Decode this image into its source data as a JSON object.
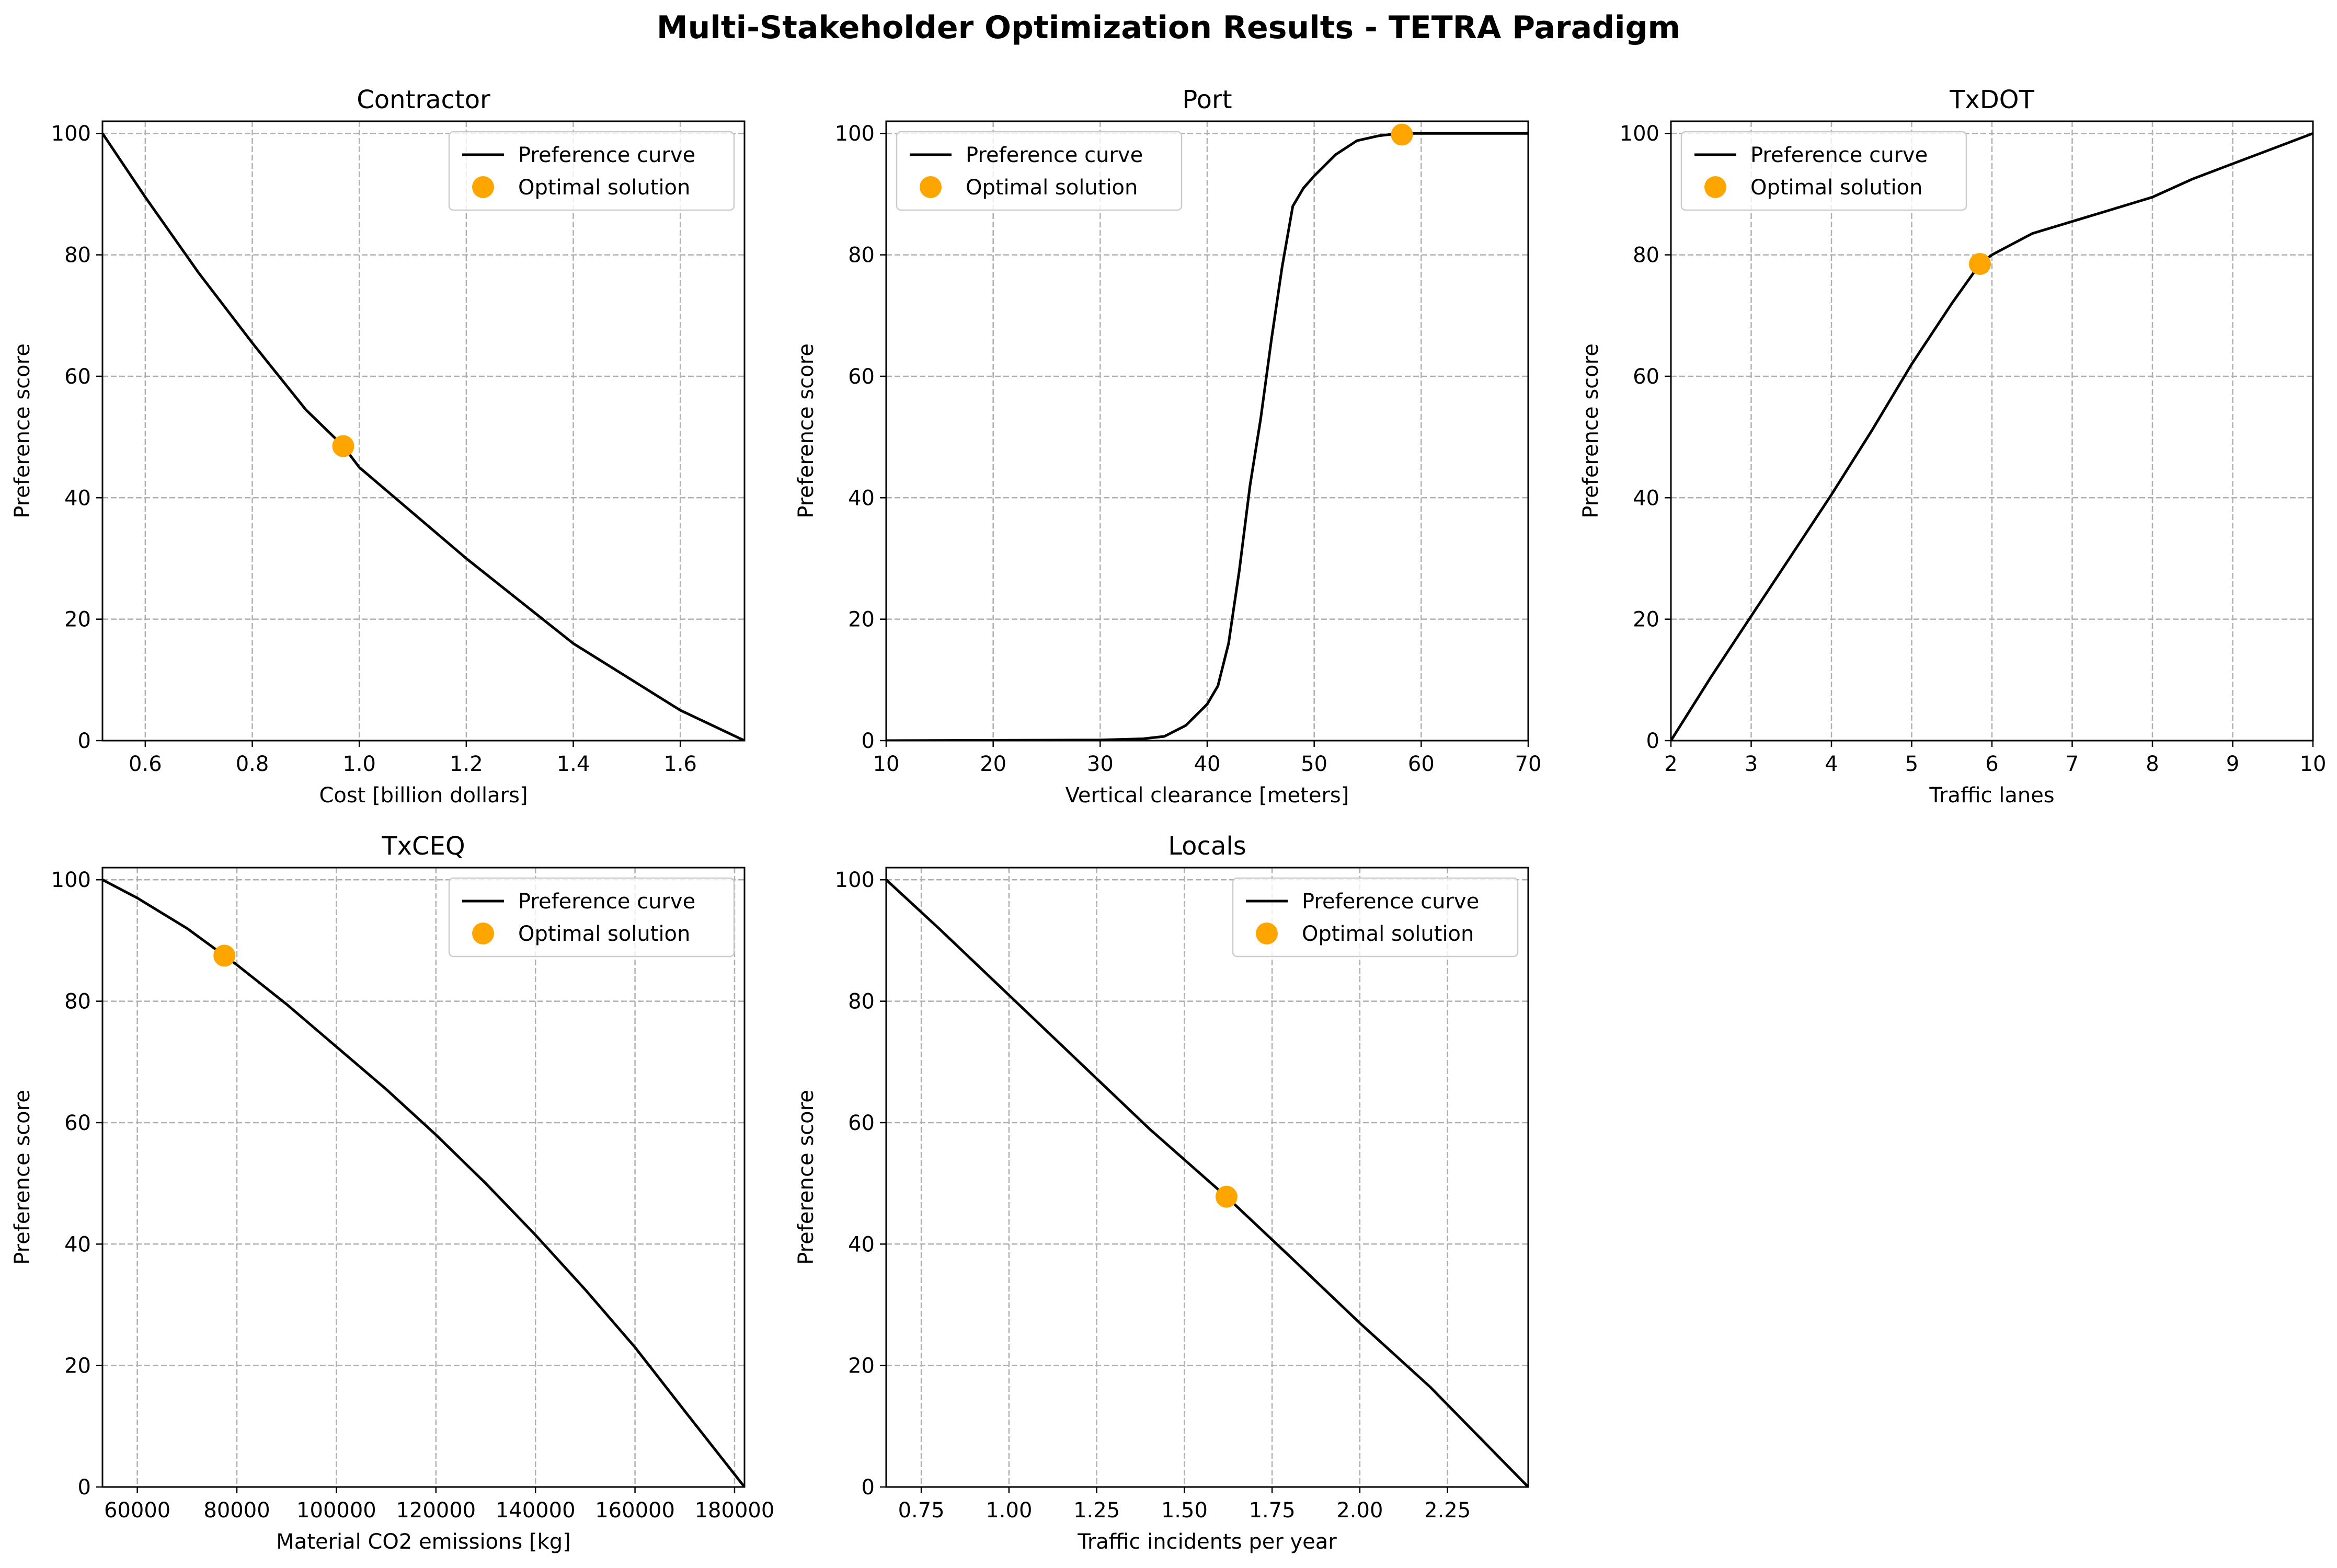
{
  "suptitle": "Multi-Stakeholder Optimization Results - TETRA Paradigm",
  "colors": {
    "curve": "#000000",
    "optimal": "#FFA500",
    "grid": "#b0b0b0"
  },
  "chart_data": [
    {
      "type": "line",
      "title": "Contractor",
      "xlabel": "Cost [billion dollars]",
      "ylabel": "Preference score",
      "xlim": [
        0.52,
        1.72
      ],
      "ylim": [
        0,
        102
      ],
      "xticks": [
        0.6,
        0.8,
        1.0,
        1.2,
        1.4,
        1.6
      ],
      "xtick_labels": [
        "0.6",
        "0.8",
        "1.0",
        "1.2",
        "1.4",
        "1.6"
      ],
      "yticks": [
        0,
        20,
        40,
        60,
        80,
        100
      ],
      "ytick_labels": [
        "0",
        "20",
        "40",
        "60",
        "80",
        "100"
      ],
      "grid": true,
      "legend_position": "upper right",
      "series": [
        {
          "name": "Preference curve",
          "x": [
            0.52,
            0.6,
            0.7,
            0.8,
            0.9,
            0.97,
            1.0,
            1.1,
            1.2,
            1.3,
            1.4,
            1.5,
            1.6,
            1.72
          ],
          "y": [
            100,
            89.5,
            77,
            65.5,
            54.5,
            48.5,
            45,
            37.5,
            30,
            23,
            16,
            10.5,
            5,
            0
          ]
        },
        {
          "name": "Optimal solution",
          "type": "scatter",
          "x": [
            0.97
          ],
          "y": [
            48.5
          ]
        }
      ]
    },
    {
      "type": "line",
      "title": "Port",
      "xlabel": "Vertical clearance [meters]",
      "ylabel": "Preference score",
      "xlim": [
        10,
        70
      ],
      "ylim": [
        0,
        102
      ],
      "xticks": [
        10,
        20,
        30,
        40,
        50,
        60,
        70
      ],
      "xtick_labels": [
        "10",
        "20",
        "30",
        "40",
        "50",
        "60",
        "70"
      ],
      "yticks": [
        0,
        20,
        40,
        60,
        80,
        100
      ],
      "ytick_labels": [
        "0",
        "20",
        "40",
        "60",
        "80",
        "100"
      ],
      "grid": true,
      "legend_position": "upper left",
      "series": [
        {
          "name": "Preference curve",
          "x": [
            10,
            30,
            34,
            36,
            38,
            40,
            41,
            42,
            43,
            44,
            45,
            46,
            47,
            48,
            49,
            50,
            52,
            54,
            56,
            58,
            70
          ],
          "y": [
            0,
            0.1,
            0.3,
            0.7,
            2.5,
            6,
            9,
            16,
            28,
            42,
            53,
            66,
            78,
            88,
            91,
            93,
            96.5,
            98.8,
            99.6,
            100,
            100
          ]
        },
        {
          "name": "Optimal solution",
          "type": "scatter",
          "x": [
            58.2
          ],
          "y": [
            99.8
          ]
        }
      ]
    },
    {
      "type": "line",
      "title": "TxDOT",
      "xlabel": "Traffic lanes",
      "ylabel": "Preference score",
      "xlim": [
        2,
        10
      ],
      "ylim": [
        0,
        102
      ],
      "xticks": [
        2,
        3,
        4,
        5,
        6,
        7,
        8,
        9,
        10
      ],
      "xtick_labels": [
        "2",
        "3",
        "4",
        "5",
        "6",
        "7",
        "8",
        "9",
        "10"
      ],
      "yticks": [
        0,
        20,
        40,
        60,
        80,
        100
      ],
      "ytick_labels": [
        "0",
        "20",
        "40",
        "60",
        "80",
        "100"
      ],
      "grid": true,
      "legend_position": "upper left",
      "series": [
        {
          "name": "Preference curve",
          "x": [
            2,
            2.5,
            3,
            3.5,
            4,
            4.5,
            5,
            5.5,
            5.85,
            6,
            6.5,
            7,
            7.5,
            8,
            8.5,
            9,
            9.5,
            10
          ],
          "y": [
            0,
            10.5,
            20.5,
            30.5,
            40.5,
            51,
            62,
            72,
            78.5,
            80,
            83.5,
            85.5,
            87.5,
            89.5,
            92.5,
            95,
            97.5,
            100
          ]
        },
        {
          "name": "Optimal solution",
          "type": "scatter",
          "x": [
            5.85
          ],
          "y": [
            78.5
          ]
        }
      ]
    },
    {
      "type": "line",
      "title": "TxCEQ",
      "xlabel": "Material CO2 emissions [kg]",
      "ylabel": "Preference score",
      "xlim": [
        53000,
        182000
      ],
      "ylim": [
        0,
        102
      ],
      "xticks": [
        60000,
        80000,
        100000,
        120000,
        140000,
        160000,
        180000
      ],
      "xtick_labels": [
        "60000",
        "80000",
        "100000",
        "120000",
        "140000",
        "160000",
        "180000"
      ],
      "yticks": [
        0,
        20,
        40,
        60,
        80,
        100
      ],
      "ytick_labels": [
        "0",
        "20",
        "40",
        "60",
        "80",
        "100"
      ],
      "grid": true,
      "legend_position": "upper right",
      "series": [
        {
          "name": "Preference curve",
          "x": [
            53000,
            60000,
            70000,
            77500,
            80000,
            90000,
            100000,
            110000,
            120000,
            130000,
            140000,
            150000,
            160000,
            170000,
            182000
          ],
          "y": [
            100,
            97,
            92,
            87.5,
            86,
            79.5,
            72.5,
            65.5,
            58,
            50,
            41.5,
            32.5,
            23,
            12.5,
            0
          ]
        },
        {
          "name": "Optimal solution",
          "type": "scatter",
          "x": [
            77500
          ],
          "y": [
            87.5
          ]
        }
      ]
    },
    {
      "type": "line",
      "title": "Locals",
      "xlabel": "Traffic incidents per year",
      "ylabel": "Preference score",
      "xlim": [
        0.65,
        2.48
      ],
      "ylim": [
        0,
        102
      ],
      "xticks": [
        0.75,
        1.0,
        1.25,
        1.5,
        1.75,
        2.0,
        2.25
      ],
      "xtick_labels": [
        "0.75",
        "1.00",
        "1.25",
        "1.50",
        "1.75",
        "2.00",
        "2.25"
      ],
      "yticks": [
        0,
        20,
        40,
        60,
        80,
        100
      ],
      "ytick_labels": [
        "0",
        "20",
        "40",
        "60",
        "80",
        "100"
      ],
      "grid": true,
      "legend_position": "upper right",
      "series": [
        {
          "name": "Preference curve",
          "x": [
            0.65,
            0.8,
            1.0,
            1.2,
            1.4,
            1.62,
            1.8,
            2.0,
            2.2,
            2.48
          ],
          "y": [
            100,
            92,
            81,
            70,
            59,
            47.8,
            38,
            27,
            16.5,
            0
          ]
        },
        {
          "name": "Optimal solution",
          "type": "scatter",
          "x": [
            1.62
          ],
          "y": [
            47.8
          ]
        }
      ]
    }
  ]
}
